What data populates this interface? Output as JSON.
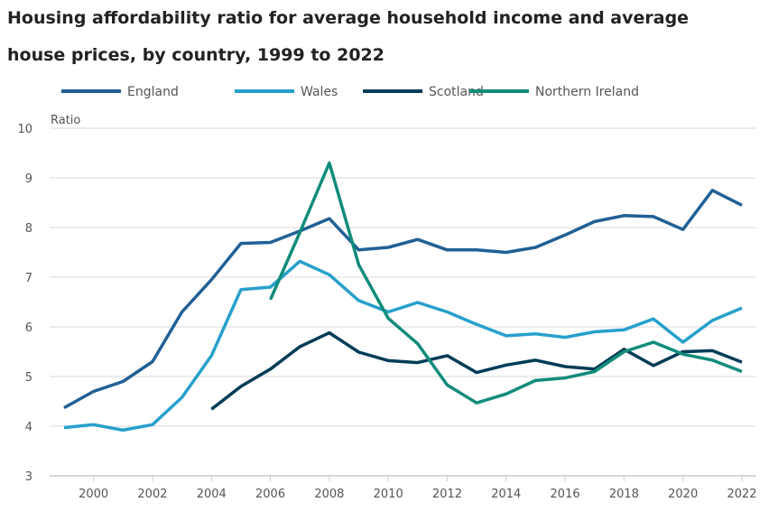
{
  "chart_data": {
    "type": "line",
    "title": "Housing affordability ratio for average household income and average house prices, by country, 1999 to 2022",
    "ylabel": "Ratio",
    "xlabel": "",
    "ylim": [
      3,
      10
    ],
    "xlim": [
      1999,
      2022
    ],
    "yticks": [
      3,
      4,
      5,
      6,
      7,
      8,
      9,
      10
    ],
    "xticks": [
      2000,
      2002,
      2004,
      2006,
      2008,
      2010,
      2012,
      2014,
      2016,
      2018,
      2020,
      2022
    ],
    "grid": true,
    "legend_position": "top",
    "x": [
      1999,
      2000,
      2001,
      2002,
      2003,
      2004,
      2005,
      2006,
      2007,
      2008,
      2009,
      2010,
      2011,
      2012,
      2013,
      2014,
      2015,
      2016,
      2017,
      2018,
      2019,
      2020,
      2021,
      2022
    ],
    "series": [
      {
        "name": "England",
        "color": "#206095",
        "values": [
          4.37,
          4.7,
          4.9,
          5.3,
          6.3,
          6.95,
          7.68,
          7.7,
          7.93,
          8.18,
          7.55,
          7.6,
          7.76,
          7.55,
          7.55,
          7.5,
          7.6,
          7.85,
          8.12,
          8.24,
          8.22,
          7.96,
          8.75,
          8.45
        ]
      },
      {
        "name": "Wales",
        "color": "#27a0cc",
        "values": [
          3.97,
          4.03,
          3.92,
          4.03,
          4.58,
          5.42,
          6.75,
          6.8,
          7.32,
          7.05,
          6.53,
          6.3,
          6.49,
          6.3,
          6.05,
          5.82,
          5.86,
          5.79,
          5.9,
          5.94,
          6.16,
          5.69,
          6.13,
          6.38
        ]
      },
      {
        "name": "Scotland",
        "color": "#003c57",
        "values": [
          null,
          null,
          null,
          null,
          null,
          4.34,
          4.8,
          5.15,
          5.6,
          5.88,
          5.49,
          5.32,
          5.28,
          5.42,
          5.08,
          5.23,
          5.33,
          5.2,
          5.15,
          5.55,
          5.22,
          5.5,
          5.52,
          5.29
        ]
      },
      {
        "name": "Northern Ireland",
        "color": "#118c7b",
        "values": [
          null,
          null,
          null,
          null,
          null,
          null,
          null,
          6.55,
          7.9,
          9.3,
          7.25,
          6.17,
          5.66,
          4.83,
          4.47,
          4.65,
          4.92,
          4.97,
          5.1,
          5.5,
          5.69,
          5.45,
          5.33,
          5.1
        ]
      }
    ]
  }
}
